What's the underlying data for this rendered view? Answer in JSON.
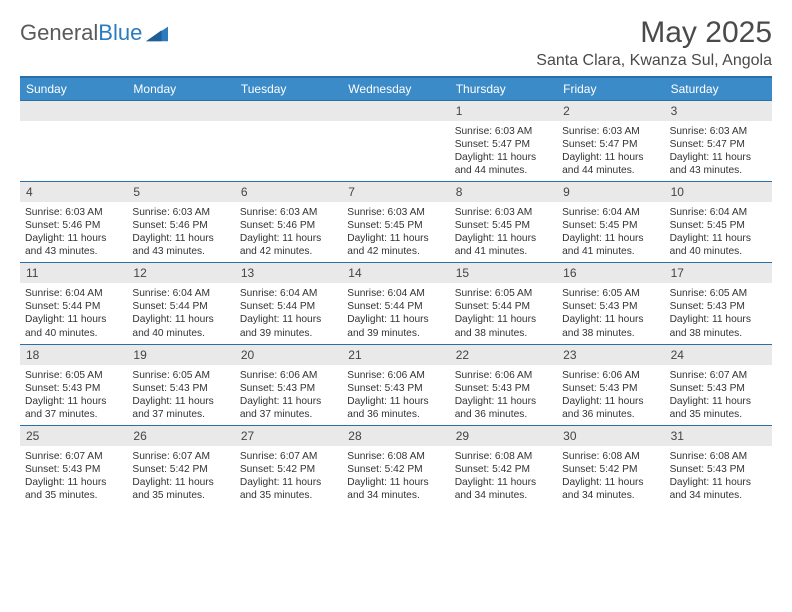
{
  "logo": {
    "text1": "General",
    "text2": "Blue"
  },
  "title": "May 2025",
  "location": "Santa Clara, Kwanza Sul, Angola",
  "colors": {
    "header_bar": "#3b8bc9",
    "rule": "#2b6fa8",
    "daynum_bg": "#e9e9e9",
    "text": "#333333",
    "title_text": "#4a4a4a"
  },
  "day_names": [
    "Sunday",
    "Monday",
    "Tuesday",
    "Wednesday",
    "Thursday",
    "Friday",
    "Saturday"
  ],
  "weeks": [
    [
      {
        "n": "",
        "lines": []
      },
      {
        "n": "",
        "lines": []
      },
      {
        "n": "",
        "lines": []
      },
      {
        "n": "",
        "lines": []
      },
      {
        "n": "1",
        "lines": [
          "Sunrise: 6:03 AM",
          "Sunset: 5:47 PM",
          "Daylight: 11 hours and 44 minutes."
        ]
      },
      {
        "n": "2",
        "lines": [
          "Sunrise: 6:03 AM",
          "Sunset: 5:47 PM",
          "Daylight: 11 hours and 44 minutes."
        ]
      },
      {
        "n": "3",
        "lines": [
          "Sunrise: 6:03 AM",
          "Sunset: 5:47 PM",
          "Daylight: 11 hours and 43 minutes."
        ]
      }
    ],
    [
      {
        "n": "4",
        "lines": [
          "Sunrise: 6:03 AM",
          "Sunset: 5:46 PM",
          "Daylight: 11 hours and 43 minutes."
        ]
      },
      {
        "n": "5",
        "lines": [
          "Sunrise: 6:03 AM",
          "Sunset: 5:46 PM",
          "Daylight: 11 hours and 43 minutes."
        ]
      },
      {
        "n": "6",
        "lines": [
          "Sunrise: 6:03 AM",
          "Sunset: 5:46 PM",
          "Daylight: 11 hours and 42 minutes."
        ]
      },
      {
        "n": "7",
        "lines": [
          "Sunrise: 6:03 AM",
          "Sunset: 5:45 PM",
          "Daylight: 11 hours and 42 minutes."
        ]
      },
      {
        "n": "8",
        "lines": [
          "Sunrise: 6:03 AM",
          "Sunset: 5:45 PM",
          "Daylight: 11 hours and 41 minutes."
        ]
      },
      {
        "n": "9",
        "lines": [
          "Sunrise: 6:04 AM",
          "Sunset: 5:45 PM",
          "Daylight: 11 hours and 41 minutes."
        ]
      },
      {
        "n": "10",
        "lines": [
          "Sunrise: 6:04 AM",
          "Sunset: 5:45 PM",
          "Daylight: 11 hours and 40 minutes."
        ]
      }
    ],
    [
      {
        "n": "11",
        "lines": [
          "Sunrise: 6:04 AM",
          "Sunset: 5:44 PM",
          "Daylight: 11 hours and 40 minutes."
        ]
      },
      {
        "n": "12",
        "lines": [
          "Sunrise: 6:04 AM",
          "Sunset: 5:44 PM",
          "Daylight: 11 hours and 40 minutes."
        ]
      },
      {
        "n": "13",
        "lines": [
          "Sunrise: 6:04 AM",
          "Sunset: 5:44 PM",
          "Daylight: 11 hours and 39 minutes."
        ]
      },
      {
        "n": "14",
        "lines": [
          "Sunrise: 6:04 AM",
          "Sunset: 5:44 PM",
          "Daylight: 11 hours and 39 minutes."
        ]
      },
      {
        "n": "15",
        "lines": [
          "Sunrise: 6:05 AM",
          "Sunset: 5:44 PM",
          "Daylight: 11 hours and 38 minutes."
        ]
      },
      {
        "n": "16",
        "lines": [
          "Sunrise: 6:05 AM",
          "Sunset: 5:43 PM",
          "Daylight: 11 hours and 38 minutes."
        ]
      },
      {
        "n": "17",
        "lines": [
          "Sunrise: 6:05 AM",
          "Sunset: 5:43 PM",
          "Daylight: 11 hours and 38 minutes."
        ]
      }
    ],
    [
      {
        "n": "18",
        "lines": [
          "Sunrise: 6:05 AM",
          "Sunset: 5:43 PM",
          "Daylight: 11 hours and 37 minutes."
        ]
      },
      {
        "n": "19",
        "lines": [
          "Sunrise: 6:05 AM",
          "Sunset: 5:43 PM",
          "Daylight: 11 hours and 37 minutes."
        ]
      },
      {
        "n": "20",
        "lines": [
          "Sunrise: 6:06 AM",
          "Sunset: 5:43 PM",
          "Daylight: 11 hours and 37 minutes."
        ]
      },
      {
        "n": "21",
        "lines": [
          "Sunrise: 6:06 AM",
          "Sunset: 5:43 PM",
          "Daylight: 11 hours and 36 minutes."
        ]
      },
      {
        "n": "22",
        "lines": [
          "Sunrise: 6:06 AM",
          "Sunset: 5:43 PM",
          "Daylight: 11 hours and 36 minutes."
        ]
      },
      {
        "n": "23",
        "lines": [
          "Sunrise: 6:06 AM",
          "Sunset: 5:43 PM",
          "Daylight: 11 hours and 36 minutes."
        ]
      },
      {
        "n": "24",
        "lines": [
          "Sunrise: 6:07 AM",
          "Sunset: 5:43 PM",
          "Daylight: 11 hours and 35 minutes."
        ]
      }
    ],
    [
      {
        "n": "25",
        "lines": [
          "Sunrise: 6:07 AM",
          "Sunset: 5:43 PM",
          "Daylight: 11 hours and 35 minutes."
        ]
      },
      {
        "n": "26",
        "lines": [
          "Sunrise: 6:07 AM",
          "Sunset: 5:42 PM",
          "Daylight: 11 hours and 35 minutes."
        ]
      },
      {
        "n": "27",
        "lines": [
          "Sunrise: 6:07 AM",
          "Sunset: 5:42 PM",
          "Daylight: 11 hours and 35 minutes."
        ]
      },
      {
        "n": "28",
        "lines": [
          "Sunrise: 6:08 AM",
          "Sunset: 5:42 PM",
          "Daylight: 11 hours and 34 minutes."
        ]
      },
      {
        "n": "29",
        "lines": [
          "Sunrise: 6:08 AM",
          "Sunset: 5:42 PM",
          "Daylight: 11 hours and 34 minutes."
        ]
      },
      {
        "n": "30",
        "lines": [
          "Sunrise: 6:08 AM",
          "Sunset: 5:42 PM",
          "Daylight: 11 hours and 34 minutes."
        ]
      },
      {
        "n": "31",
        "lines": [
          "Sunrise: 6:08 AM",
          "Sunset: 5:43 PM",
          "Daylight: 11 hours and 34 minutes."
        ]
      }
    ]
  ]
}
